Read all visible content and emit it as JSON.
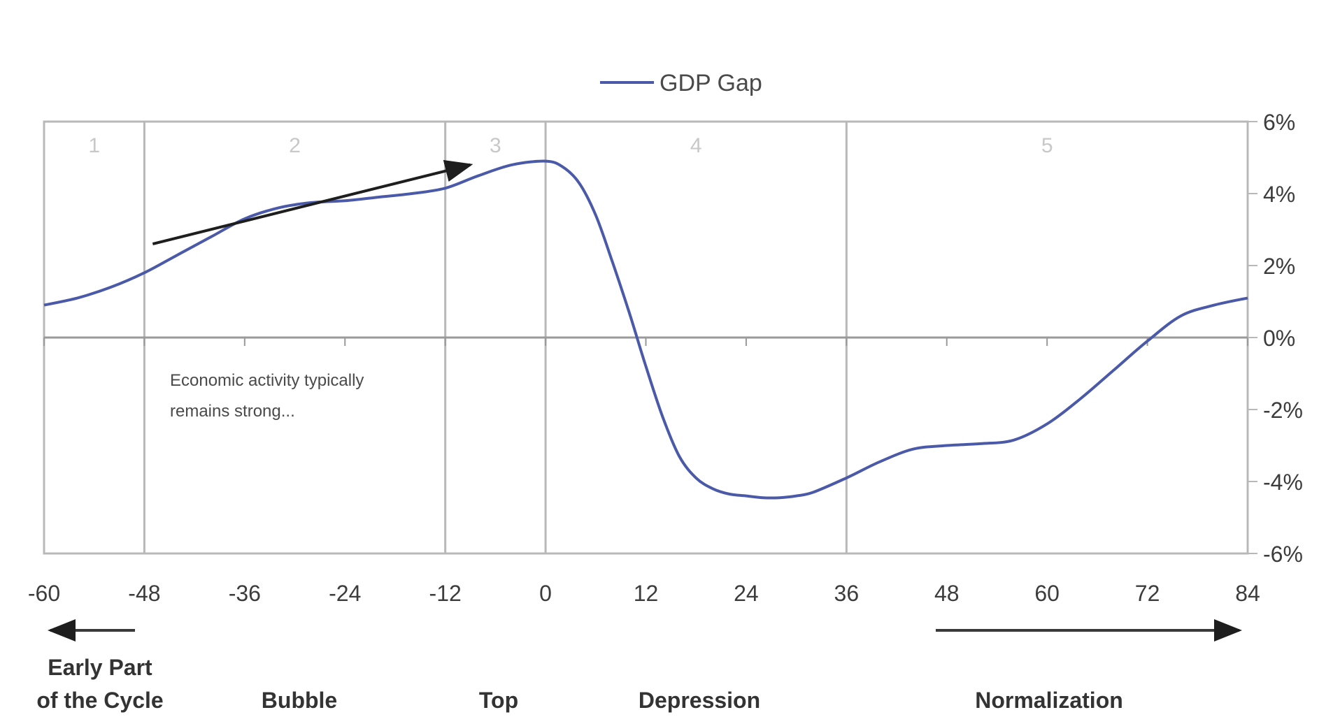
{
  "legend": {
    "label": "GDP Gap"
  },
  "annotation": {
    "line1": "Economic activity typically",
    "line2": "remains strong..."
  },
  "phase_labels": [
    {
      "line1": "Early Part",
      "line2": "of the Cycle"
    },
    {
      "line1": "",
      "line2": "Bubble"
    },
    {
      "line1": "",
      "line2": "Top"
    },
    {
      "line1": "",
      "line2": "Depression"
    },
    {
      "line1": "",
      "line2": "Normalization"
    }
  ],
  "colors": {
    "series": "#4a5aa8",
    "frame": "#b8b8b8",
    "arrow": "#1e1e1e"
  },
  "chart_data": {
    "type": "line",
    "title": "",
    "xlabel": "",
    "ylabel": "",
    "xlim": [
      -60,
      84
    ],
    "ylim": [
      -6,
      6
    ],
    "x_ticks": [
      -60,
      -48,
      -36,
      -24,
      -12,
      0,
      12,
      24,
      36,
      48,
      60,
      72,
      84
    ],
    "x_tick_labels": [
      "-60",
      "-48",
      "-36",
      "-24",
      "-12",
      "0",
      "12",
      "24",
      "36",
      "48",
      "60",
      "72",
      "84"
    ],
    "y_ticks": [
      6,
      4,
      2,
      0,
      -2,
      -4,
      -6
    ],
    "y_tick_labels": [
      "6%",
      "4%",
      "2%",
      "0%",
      "-2%",
      "-4%",
      "-6%"
    ],
    "y_axis_side": "right",
    "legend_position": "top-center",
    "grid": false,
    "phase_dividers": [
      -48,
      -12,
      0,
      36
    ],
    "phases": [
      {
        "number": "1",
        "x_range": [
          -60,
          -48
        ]
      },
      {
        "number": "2",
        "x_range": [
          -48,
          -12
        ]
      },
      {
        "number": "3",
        "x_range": [
          -12,
          0
        ]
      },
      {
        "number": "4",
        "x_range": [
          0,
          36
        ]
      },
      {
        "number": "5",
        "x_range": [
          36,
          84
        ]
      }
    ],
    "series": [
      {
        "name": "GDP Gap",
        "x": [
          -60,
          -56,
          -52,
          -48,
          -44,
          -40,
          -36,
          -32,
          -28,
          -24,
          -20,
          -16,
          -12,
          -8,
          -4,
          0,
          2,
          4,
          6,
          8,
          10,
          12,
          14,
          16,
          18,
          20,
          22,
          24,
          26,
          28,
          30,
          32,
          36,
          40,
          44,
          48,
          52,
          56,
          60,
          64,
          68,
          72,
          76,
          80,
          84
        ],
        "values": [
          0.9,
          1.1,
          1.4,
          1.8,
          2.3,
          2.8,
          3.3,
          3.6,
          3.75,
          3.8,
          3.9,
          4.0,
          4.15,
          4.5,
          4.8,
          4.9,
          4.75,
          4.3,
          3.4,
          2.1,
          0.7,
          -0.8,
          -2.2,
          -3.3,
          -3.9,
          -4.2,
          -4.35,
          -4.4,
          -4.45,
          -4.45,
          -4.4,
          -4.3,
          -3.9,
          -3.45,
          -3.1,
          -3.0,
          -2.95,
          -2.85,
          -2.4,
          -1.7,
          -0.9,
          -0.1,
          0.6,
          0.9,
          1.1
        ]
      }
    ],
    "arrows": [
      {
        "from": [
          -47,
          2.6
        ],
        "to": [
          -9,
          4.8
        ]
      }
    ]
  }
}
